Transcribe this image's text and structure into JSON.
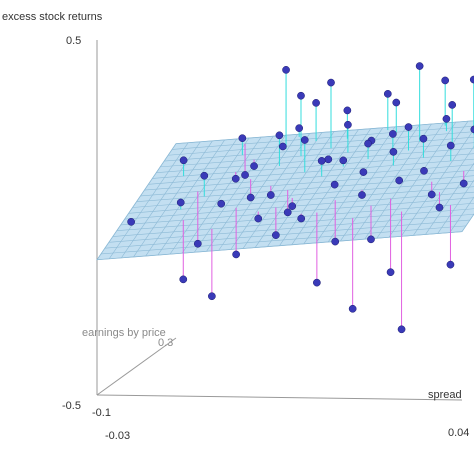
{
  "chart_data": {
    "type": "scatter",
    "subtype": "3d-scatter-with-regression-plane",
    "title": "",
    "zlabel": "excess stock returns",
    "xlabel": "spread",
    "ylabel": "earnings by price",
    "z_ticks": [
      "0.5",
      "-0.5"
    ],
    "x_ticks": [
      "-0.03",
      "0.04"
    ],
    "y_ticks": [
      "-0.1",
      "0.3"
    ],
    "zlim": [
      -0.5,
      0.5
    ],
    "xlim": [
      -0.03,
      0.04
    ],
    "ylim": [
      -0.1,
      0.3
    ],
    "plane_color": "#b9d9ee",
    "point_color": "#3a3ab8",
    "residual_above_color": "#33dddd",
    "residual_below_color": "#e060e0",
    "points": [
      {
        "x": -0.028,
        "y": 0.02,
        "z": -0.06,
        "zhat": -0.07
      },
      {
        "x": -0.024,
        "y": 0.18,
        "z": 0.05,
        "zhat": 0.02
      },
      {
        "x": -0.02,
        "y": 0.06,
        "z": -0.02,
        "zhat": -0.03
      },
      {
        "x": -0.019,
        "y": 0.12,
        "z": -0.16,
        "zhat": -0.02
      },
      {
        "x": -0.018,
        "y": 0.02,
        "z": -0.22,
        "zhat": -0.06
      },
      {
        "x": -0.016,
        "y": 0.28,
        "z": -0.03,
        "zhat": 0.07
      },
      {
        "x": -0.015,
        "y": 0.24,
        "z": 0.09,
        "zhat": 0.05
      },
      {
        "x": -0.014,
        "y": 0.18,
        "z": 0.0,
        "zhat": 0.02
      },
      {
        "x": -0.013,
        "y": 0.08,
        "z": -0.03,
        "zhat": -0.02
      },
      {
        "x": -0.012,
        "y": 0.22,
        "z": 0.02,
        "zhat": 0.04
      },
      {
        "x": -0.011,
        "y": -0.02,
        "z": -0.25,
        "zhat": -0.07
      },
      {
        "x": -0.01,
        "y": 0.15,
        "z": -0.04,
        "zhat": 0.01
      },
      {
        "x": -0.009,
        "y": 0.05,
        "z": -0.16,
        "zhat": -0.03
      },
      {
        "x": -0.008,
        "y": 0.26,
        "z": 0.06,
        "zhat": 0.06
      },
      {
        "x": -0.007,
        "y": 0.25,
        "z": 0.28,
        "zhat": 0.06
      },
      {
        "x": -0.006,
        "y": 0.19,
        "z": 0.12,
        "zhat": 0.04
      },
      {
        "x": -0.005,
        "y": 0.12,
        "z": -0.02,
        "zhat": 0.0
      },
      {
        "x": -0.004,
        "y": 0.03,
        "z": -0.05,
        "zhat": -0.04
      },
      {
        "x": -0.003,
        "y": 0.22,
        "z": 0.22,
        "zhat": 0.05
      },
      {
        "x": -0.002,
        "y": 0.27,
        "z": 0.18,
        "zhat": 0.07
      },
      {
        "x": -0.001,
        "y": 0.1,
        "z": -0.06,
        "zhat": 0.0
      },
      {
        "x": 0.0,
        "y": 0.16,
        "z": 0.12,
        "zhat": 0.02
      },
      {
        "x": 0.001,
        "y": 0.07,
        "z": -0.03,
        "zhat": -0.01
      },
      {
        "x": 0.002,
        "y": 0.24,
        "z": 0.25,
        "zhat": 0.06
      },
      {
        "x": 0.003,
        "y": 0.2,
        "z": 0.05,
        "zhat": 0.05
      },
      {
        "x": 0.004,
        "y": 0.14,
        "z": 0.07,
        "zhat": 0.03
      },
      {
        "x": 0.005,
        "y": 0.01,
        "z": -0.04,
        "zhat": -0.03
      },
      {
        "x": 0.006,
        "y": 0.22,
        "z": 0.14,
        "zhat": 0.05
      },
      {
        "x": 0.007,
        "y": 0.17,
        "z": 0.06,
        "zhat": 0.04
      },
      {
        "x": 0.008,
        "y": 0.1,
        "z": 0.02,
        "zhat": 0.02
      },
      {
        "x": 0.009,
        "y": 0.26,
        "z": 0.08,
        "zhat": 0.08
      },
      {
        "x": 0.01,
        "y": 0.05,
        "z": -0.12,
        "zhat": 0.0
      },
      {
        "x": 0.011,
        "y": 0.19,
        "z": 0.1,
        "zhat": 0.05
      },
      {
        "x": 0.012,
        "y": 0.14,
        "z": 0.04,
        "zhat": 0.04
      },
      {
        "x": 0.013,
        "y": 0.28,
        "z": 0.18,
        "zhat": 0.09
      },
      {
        "x": 0.014,
        "y": 0.08,
        "z": 0.0,
        "zhat": 0.02
      },
      {
        "x": 0.015,
        "y": 0.21,
        "z": 0.12,
        "zhat": 0.07
      },
      {
        "x": 0.016,
        "y": -0.02,
        "z": -0.28,
        "zhat": -0.03
      },
      {
        "x": 0.017,
        "y": 0.16,
        "z": 0.09,
        "zhat": 0.05
      },
      {
        "x": 0.018,
        "y": 0.02,
        "z": -0.1,
        "zhat": -0.01
      },
      {
        "x": 0.019,
        "y": 0.24,
        "z": 0.3,
        "zhat": 0.09
      },
      {
        "x": 0.02,
        "y": 0.11,
        "z": 0.03,
        "zhat": 0.04
      },
      {
        "x": 0.021,
        "y": 0.04,
        "z": -0.2,
        "zhat": 0.0
      },
      {
        "x": 0.022,
        "y": 0.18,
        "z": 0.12,
        "zhat": 0.07
      },
      {
        "x": 0.023,
        "y": 0.27,
        "z": 0.14,
        "zhat": 0.1
      },
      {
        "x": 0.024,
        "y": 0.13,
        "z": 0.05,
        "zhat": 0.05
      },
      {
        "x": 0.025,
        "y": -0.01,
        "z": -0.34,
        "zhat": -0.01
      },
      {
        "x": 0.026,
        "y": 0.22,
        "z": 0.2,
        "zhat": 0.09
      },
      {
        "x": 0.027,
        "y": 0.09,
        "z": 0.0,
        "zhat": 0.04
      },
      {
        "x": 0.028,
        "y": 0.16,
        "z": 0.11,
        "zhat": 0.07
      },
      {
        "x": 0.029,
        "y": 0.25,
        "z": 0.26,
        "zhat": 0.1
      },
      {
        "x": 0.03,
        "y": 0.05,
        "z": -0.02,
        "zhat": 0.03
      },
      {
        "x": 0.031,
        "y": 0.2,
        "z": 0.14,
        "zhat": 0.09
      },
      {
        "x": 0.032,
        "y": 0.12,
        "z": 0.02,
        "zhat": 0.06
      },
      {
        "x": 0.033,
        "y": 0.28,
        "z": 0.22,
        "zhat": 0.12
      },
      {
        "x": 0.034,
        "y": 0.0,
        "z": -0.16,
        "zhat": 0.02
      },
      {
        "x": 0.035,
        "y": 0.17,
        "z": 0.09,
        "zhat": 0.08
      },
      {
        "x": 0.036,
        "y": 0.23,
        "z": 0.16,
        "zhat": 0.1
      },
      {
        "x": 0.037,
        "y": 0.08,
        "z": 0.02,
        "zhat": 0.05
      },
      {
        "x": 0.038,
        "y": 0.14,
        "z": 0.06,
        "zhat": 0.07
      },
      {
        "x": -0.017,
        "y": 0.1,
        "z": 0.04,
        "zhat": -0.01
      },
      {
        "x": -0.006,
        "y": 0.29,
        "z": 0.1,
        "zhat": 0.07
      },
      {
        "x": 0.004,
        "y": 0.27,
        "z": 0.16,
        "zhat": 0.08
      },
      {
        "x": 0.011,
        "y": 0.29,
        "z": 0.2,
        "zhat": 0.1
      },
      {
        "x": 0.022,
        "y": 0.29,
        "z": 0.24,
        "zhat": 0.11
      },
      {
        "x": -0.001,
        "y": 0.04,
        "z": -0.1,
        "zhat": -0.02
      },
      {
        "x": 0.008,
        "y": 0.01,
        "z": -0.22,
        "zhat": -0.02
      },
      {
        "x": 0.018,
        "y": 0.21,
        "z": 0.14,
        "zhat": 0.08
      }
    ]
  }
}
